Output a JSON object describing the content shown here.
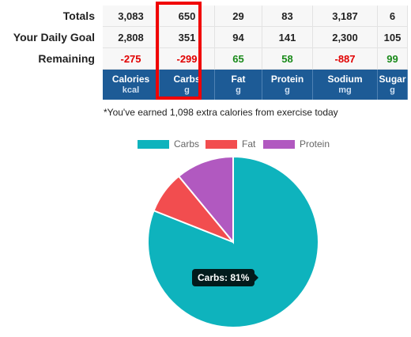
{
  "rows": [
    {
      "label": "Totals",
      "values": [
        "3,083",
        "650",
        "29",
        "83",
        "3,187",
        "6"
      ]
    },
    {
      "label": "Your Daily Goal",
      "values": [
        "2,808",
        "351",
        "94",
        "141",
        "2,300",
        "105"
      ]
    },
    {
      "label": "Remaining",
      "values": [
        "-275",
        "-299",
        "65",
        "58",
        "-887",
        "99"
      ]
    }
  ],
  "columns": [
    {
      "name": "Calories",
      "unit": "kcal"
    },
    {
      "name": "Carbs",
      "unit": "g"
    },
    {
      "name": "Fat",
      "unit": "g"
    },
    {
      "name": "Protein",
      "unit": "g"
    },
    {
      "name": "Sodium",
      "unit": "mg"
    },
    {
      "name": "Sugar",
      "unit": "g"
    }
  ],
  "note": "*You've earned 1,098 extra calories from exercise today",
  "chart_data": {
    "type": "pie",
    "labels": [
      "Carbs",
      "Fat",
      "Protein"
    ],
    "values": [
      81,
      8,
      11
    ],
    "colors": [
      "#0eb3bd",
      "#f24d4f",
      "#b159c0"
    ],
    "tooltip": "Carbs: 81%"
  },
  "colors": {
    "header_bg": "#1d5b96",
    "negative": "#e10000",
    "positive": "#1a8a1a",
    "highlight": "#f00000"
  }
}
